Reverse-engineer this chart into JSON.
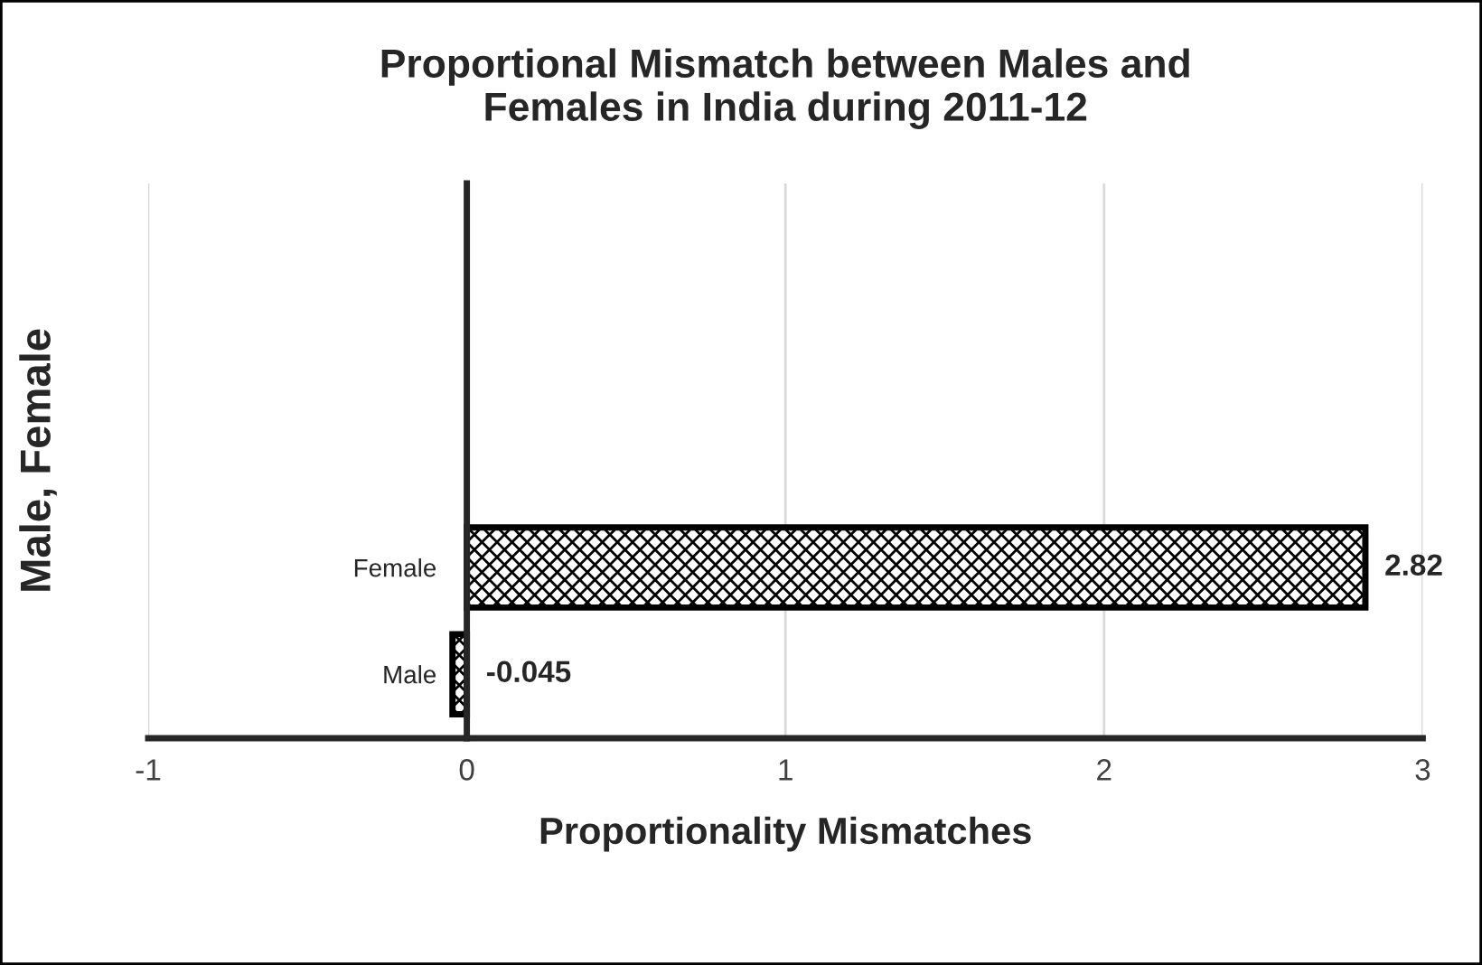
{
  "chart_data": {
    "type": "bar",
    "orientation": "horizontal",
    "title": "Proportional Mismatch between Males and\nFemales in India during 2011-12",
    "xlabel": "Proportionality Mismatches",
    "ylabel": "Male, Female",
    "categories": [
      "Female",
      "Male"
    ],
    "values": [
      2.82,
      -0.045
    ],
    "color": "#000000",
    "xlim": [
      -1,
      3
    ],
    "xticks": [
      -1,
      0,
      1,
      2,
      3
    ],
    "grid": "x",
    "data_labels": true
  }
}
